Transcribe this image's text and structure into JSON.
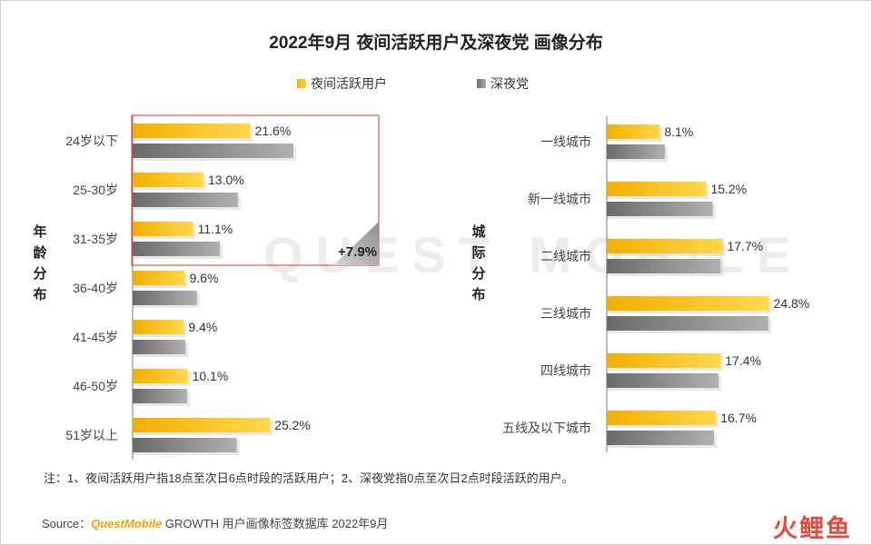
{
  "title": "2022年9月 夜间活跃用户及深夜党 画像分布",
  "legend": {
    "series1": "夜间活跃用户",
    "series2": "深夜党"
  },
  "colors": {
    "series1": "#f5b400",
    "series2": "#8a8a8a",
    "highlight_box": "#d93a3a"
  },
  "chart_data": [
    {
      "type": "bar",
      "orientation": "horizontal",
      "ylabel": "年龄分布",
      "categories": [
        "24岁以下",
        "25-30岁",
        "31-35岁",
        "36-40岁",
        "41-45岁",
        "46-50岁",
        "51岁以上"
      ],
      "series": [
        {
          "name": "夜间活跃用户",
          "values": [
            21.6,
            13.0,
            11.1,
            9.6,
            9.4,
            10.1,
            25.2
          ],
          "labels": [
            "21.6%",
            "13.0%",
            "11.1%",
            "9.6%",
            "9.4%",
            "10.1%",
            "25.2%"
          ]
        },
        {
          "name": "深夜党",
          "values": [
            29.5,
            19.3,
            16.0,
            11.8,
            9.7,
            10.0,
            19.1
          ]
        }
      ],
      "annotation": {
        "text": "+7.9%",
        "covers_categories": [
          "24岁以下",
          "25-30岁",
          "31-35岁"
        ]
      }
    },
    {
      "type": "bar",
      "orientation": "horizontal",
      "ylabel": "城际分布",
      "categories": [
        "一线城市",
        "新一线城市",
        "二线城市",
        "三线城市",
        "四线城市",
        "五线及以下城市"
      ],
      "series": [
        {
          "name": "夜间活跃用户",
          "values": [
            8.1,
            15.2,
            17.7,
            24.8,
            17.4,
            16.7
          ],
          "labels": [
            "8.1%",
            "15.2%",
            "17.7%",
            "24.8%",
            "17.4%",
            "16.7%"
          ]
        },
        {
          "name": "深夜党",
          "values": [
            8.9,
            16.2,
            17.4,
            24.7,
            17.1,
            16.4
          ]
        }
      ]
    }
  ],
  "note": "注：1、夜间活跃用户指18点至次日6点时段的活跃用户；2、深夜党指0点至次日2点时段活跃的用户。",
  "source": {
    "prefix": "Source：",
    "brand": "QuestMobile",
    "rest": " GROWTH 用户画像标签数据库 2022年9月"
  },
  "logo_text": "火鲤鱼",
  "watermark": "QUEST MOBILE"
}
